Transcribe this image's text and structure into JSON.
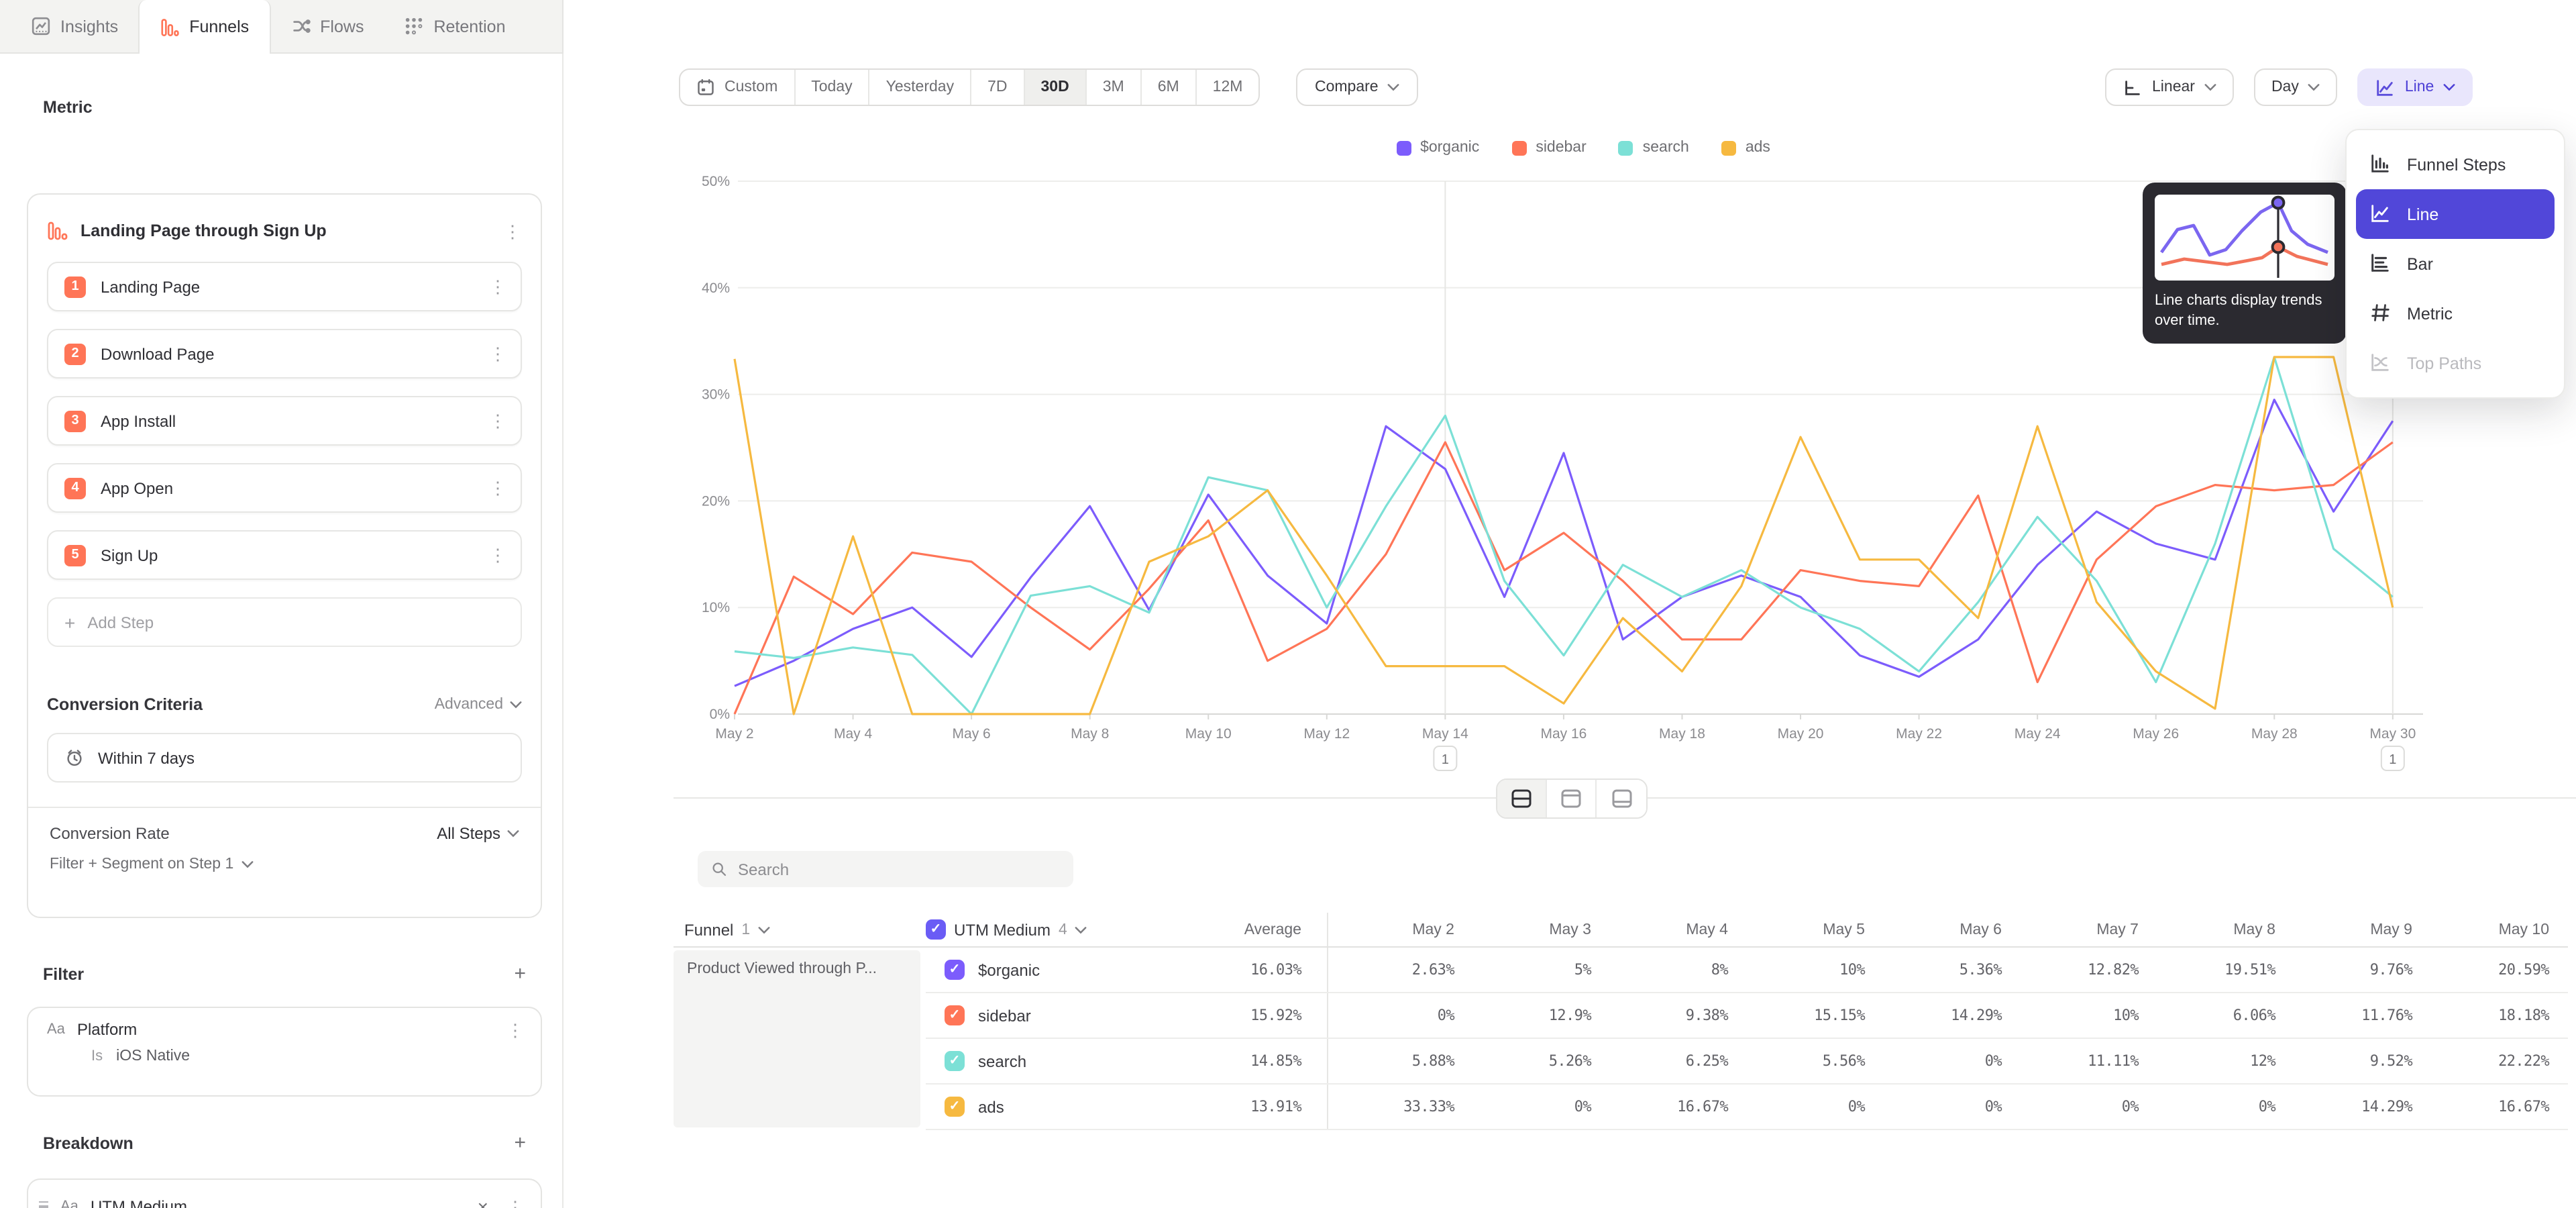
{
  "tabs": [
    {
      "label": "Insights",
      "icon": "insights-icon",
      "active": false
    },
    {
      "label": "Funnels",
      "icon": "funnels-icon",
      "active": true
    },
    {
      "label": "Flows",
      "icon": "flows-icon",
      "active": false
    },
    {
      "label": "Retention",
      "icon": "retention-icon",
      "active": false
    }
  ],
  "sidebar": {
    "metric_section_label": "Metric",
    "metric_title": "Landing Page through Sign Up",
    "steps": [
      {
        "num": "1",
        "label": "Landing Page"
      },
      {
        "num": "2",
        "label": "Download Page"
      },
      {
        "num": "3",
        "label": "App Install"
      },
      {
        "num": "4",
        "label": "App Open"
      },
      {
        "num": "5",
        "label": "Sign Up"
      }
    ],
    "add_step_label": "Add Step",
    "conversion_criteria": {
      "title": "Conversion Criteria",
      "mode": "Advanced",
      "window": "Within 7 days",
      "rate_label": "Conversion Rate",
      "rate_value": "All Steps",
      "filter_segment_label": "Filter + Segment on Step 1"
    },
    "filter": {
      "title": "Filter",
      "property_type": "Aa",
      "property": "Platform",
      "operator": "Is",
      "value": "iOS Native"
    },
    "breakdown": {
      "title": "Breakdown",
      "property_type": "Aa",
      "property": "UTM Medium"
    }
  },
  "toolbar": {
    "date_presets": [
      "Custom",
      "Today",
      "Yesterday",
      "7D",
      "30D",
      "3M",
      "6M",
      "12M"
    ],
    "active_preset": "30D",
    "compare_label": "Compare",
    "scale_label": "Linear",
    "interval_label": "Day",
    "chart_type_label": "Line"
  },
  "chart_type_menu": {
    "items": [
      {
        "label": "Funnel Steps",
        "icon": "funnel-steps-icon",
        "state": "normal"
      },
      {
        "label": "Line",
        "icon": "line-chart-icon",
        "state": "selected"
      },
      {
        "label": "Bar",
        "icon": "bar-chart-icon",
        "state": "normal"
      },
      {
        "label": "Metric",
        "icon": "metric-icon",
        "state": "normal"
      },
      {
        "label": "Top Paths",
        "icon": "top-paths-icon",
        "state": "disabled"
      }
    ],
    "tooltip_text": "Line charts display trends over time."
  },
  "chart_data": {
    "type": "line",
    "x_labels": [
      "May 2",
      "May 3",
      "May 4",
      "May 5",
      "May 6",
      "May 7",
      "May 8",
      "May 9",
      "May 10",
      "May 11",
      "May 12",
      "May 13",
      "May 14",
      "May 15",
      "May 16",
      "May 17",
      "May 18",
      "May 19",
      "May 20",
      "May 21",
      "May 22",
      "May 23",
      "May 24",
      "May 25",
      "May 26",
      "May 27",
      "May 28",
      "May 29",
      "May 30"
    ],
    "tick_every": 2,
    "ylim": [
      0,
      50
    ],
    "y_tick_labels": [
      "0%",
      "10%",
      "20%",
      "30%",
      "40%",
      "50%"
    ],
    "grid": true,
    "legend_position": "top",
    "annotations": [
      {
        "x_label": "May 14",
        "label": "1"
      },
      {
        "x_label": "May 30",
        "label": "1"
      }
    ],
    "series": [
      {
        "name": "$organic",
        "color": "#7c5cfc",
        "values": [
          2.63,
          5,
          8,
          10,
          5.36,
          12.82,
          19.51,
          9.76,
          20.59,
          13,
          8.5,
          27,
          23,
          11,
          24.5,
          7,
          11,
          13,
          11,
          5.5,
          3.5,
          7,
          14,
          19,
          16,
          14.5,
          29.5,
          19,
          27.5
        ]
      },
      {
        "name": "sidebar",
        "color": "#ff7557",
        "values": [
          0,
          12.9,
          9.38,
          15.15,
          14.29,
          10,
          6.06,
          11.76,
          18.18,
          5,
          8,
          15,
          25.5,
          13.5,
          17,
          12.5,
          7,
          7,
          13.5,
          12.5,
          12,
          20.5,
          3,
          14.5,
          19.5,
          21.5,
          21,
          21.5,
          25.5
        ]
      },
      {
        "name": "search",
        "color": "#7ce0d6",
        "values": [
          5.88,
          5.26,
          6.25,
          5.56,
          0,
          11.11,
          12,
          9.52,
          22.22,
          21,
          10,
          19.5,
          28,
          12.5,
          5.5,
          14,
          11,
          13.5,
          10,
          8,
          4,
          10.5,
          18.5,
          12.5,
          3,
          16,
          33.5,
          15.5,
          11
        ]
      },
      {
        "name": "ads",
        "color": "#f6b940",
        "values": [
          33.33,
          0,
          16.67,
          0,
          0,
          0,
          0,
          14.29,
          16.67,
          21,
          13,
          4.5,
          4.5,
          4.5,
          1,
          9,
          4,
          12,
          26,
          14.5,
          14.5,
          9,
          27,
          10.5,
          4,
          0.5,
          33.5,
          33.5,
          10
        ]
      }
    ]
  },
  "view_switcher": {
    "options": [
      "split-view",
      "chart-only-view",
      "table-only-view"
    ],
    "active": "split-view"
  },
  "table": {
    "search_placeholder": "Search",
    "funnel_label": "Funnel",
    "funnel_count": "1",
    "breakdown_label": "UTM Medium",
    "breakdown_count": "4",
    "breakdown_checkbox_color": "#6a5cf5",
    "average_label": "Average",
    "day_columns": [
      "May 2",
      "May 3",
      "May 4",
      "May 5",
      "May 6",
      "May 7",
      "May 8",
      "May 9",
      "May 10"
    ],
    "group_label": "Product Viewed through P...",
    "rows": [
      {
        "name": "$organic",
        "color": "#7c5cfc",
        "average": "16.03%",
        "values": [
          "2.63%",
          "5%",
          "8%",
          "10%",
          "5.36%",
          "12.82%",
          "19.51%",
          "9.76%",
          "20.59%"
        ]
      },
      {
        "name": "sidebar",
        "color": "#ff7557",
        "average": "15.92%",
        "values": [
          "0%",
          "12.9%",
          "9.38%",
          "15.15%",
          "14.29%",
          "10%",
          "6.06%",
          "11.76%",
          "18.18%"
        ]
      },
      {
        "name": "search",
        "color": "#7ce0d6",
        "average": "14.85%",
        "values": [
          "5.88%",
          "5.26%",
          "6.25%",
          "5.56%",
          "0%",
          "11.11%",
          "12%",
          "9.52%",
          "22.22%"
        ]
      },
      {
        "name": "ads",
        "color": "#f6b940",
        "average": "13.91%",
        "values": [
          "33.33%",
          "0%",
          "16.67%",
          "0%",
          "0%",
          "0%",
          "0%",
          "14.29%",
          "16.67%"
        ]
      }
    ]
  }
}
